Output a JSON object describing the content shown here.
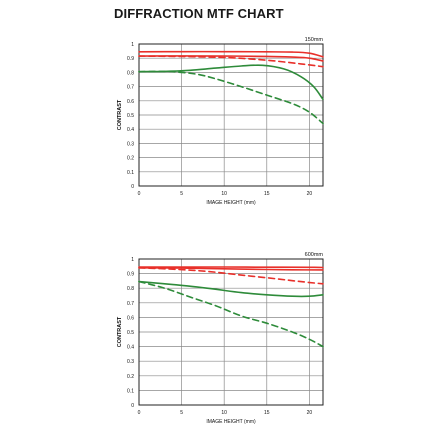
{
  "title": "DIFFRACTION MTF CHART",
  "colors": {
    "red": "#e8302a",
    "green": "#2e8b3a",
    "grid": "#8a8a8a",
    "frame": "#222222"
  },
  "chart_data": [
    {
      "type": "line",
      "focal_label": "150mm",
      "xlabel": "IMAGE HEIGHT (mm)",
      "ylabel": "CONTRAST",
      "xlim": [
        0,
        21.6
      ],
      "ylim": [
        0,
        1
      ],
      "x_ticks": [
        "0",
        "5",
        "10",
        "15",
        "20"
      ],
      "y_ticks": [
        "0",
        "0.1",
        "0.2",
        "0.3",
        "0.4",
        "0.5",
        "0.6",
        "0.7",
        "0.8",
        "0.9",
        "1"
      ],
      "grid": true,
      "series": [
        {
          "color": "red",
          "style": "solid",
          "x": [
            0,
            5,
            10,
            15,
            18,
            20,
            21.6
          ],
          "y": [
            0.945,
            0.946,
            0.946,
            0.945,
            0.943,
            0.935,
            0.91
          ]
        },
        {
          "color": "red",
          "style": "solid",
          "x": [
            0,
            5,
            10,
            15,
            18,
            20,
            21.6
          ],
          "y": [
            0.915,
            0.916,
            0.915,
            0.913,
            0.908,
            0.9,
            0.88
          ]
        },
        {
          "color": "red",
          "style": "dashed",
          "x": [
            0,
            5,
            10,
            13,
            16,
            19,
            21.6
          ],
          "y": [
            0.915,
            0.912,
            0.905,
            0.895,
            0.88,
            0.86,
            0.84
          ]
        },
        {
          "color": "green",
          "style": "solid",
          "x": [
            0,
            3,
            6,
            9,
            12,
            14.5,
            17,
            19,
            20.5,
            21.6
          ],
          "y": [
            0.805,
            0.807,
            0.815,
            0.83,
            0.845,
            0.85,
            0.825,
            0.77,
            0.7,
            0.61
          ]
        },
        {
          "color": "green",
          "style": "dashed",
          "x": [
            0,
            3,
            5,
            7,
            9,
            12,
            15,
            18,
            20,
            21.6
          ],
          "y": [
            0.805,
            0.807,
            0.8,
            0.785,
            0.755,
            0.7,
            0.64,
            0.58,
            0.52,
            0.44
          ]
        }
      ]
    },
    {
      "type": "line",
      "focal_label": "600mm",
      "xlabel": "IMAGE HEIGHT (mm)",
      "ylabel": "CONTRAST",
      "xlim": [
        0,
        21.6
      ],
      "ylim": [
        0,
        1
      ],
      "x_ticks": [
        "0",
        "5",
        "10",
        "15",
        "20"
      ],
      "y_ticks": [
        "0",
        "0.1",
        "0.2",
        "0.3",
        "0.4",
        "0.5",
        "0.6",
        "0.7",
        "0.8",
        "0.9",
        "1"
      ],
      "grid": true,
      "series": [
        {
          "color": "red",
          "style": "solid",
          "x": [
            0,
            5,
            10,
            15,
            20,
            21.6
          ],
          "y": [
            0.945,
            0.945,
            0.945,
            0.944,
            0.943,
            0.942
          ]
        },
        {
          "color": "red",
          "style": "solid",
          "x": [
            0,
            5,
            10,
            15,
            18,
            21.6
          ],
          "y": [
            0.94,
            0.938,
            0.933,
            0.928,
            0.926,
            0.925
          ]
        },
        {
          "color": "red",
          "style": "dashed",
          "x": [
            0,
            4,
            8,
            12,
            16,
            19,
            21.6
          ],
          "y": [
            0.94,
            0.93,
            0.915,
            0.89,
            0.865,
            0.845,
            0.83
          ]
        },
        {
          "color": "green",
          "style": "solid",
          "x": [
            0,
            4,
            8,
            12,
            15,
            18,
            20,
            21.6
          ],
          "y": [
            0.845,
            0.825,
            0.8,
            0.77,
            0.755,
            0.745,
            0.745,
            0.755
          ]
        },
        {
          "color": "green",
          "style": "dashed",
          "x": [
            0,
            3,
            6,
            9,
            12,
            15,
            18,
            20,
            21.6
          ],
          "y": [
            0.845,
            0.8,
            0.74,
            0.68,
            0.61,
            0.56,
            0.5,
            0.45,
            0.4
          ]
        }
      ]
    }
  ]
}
